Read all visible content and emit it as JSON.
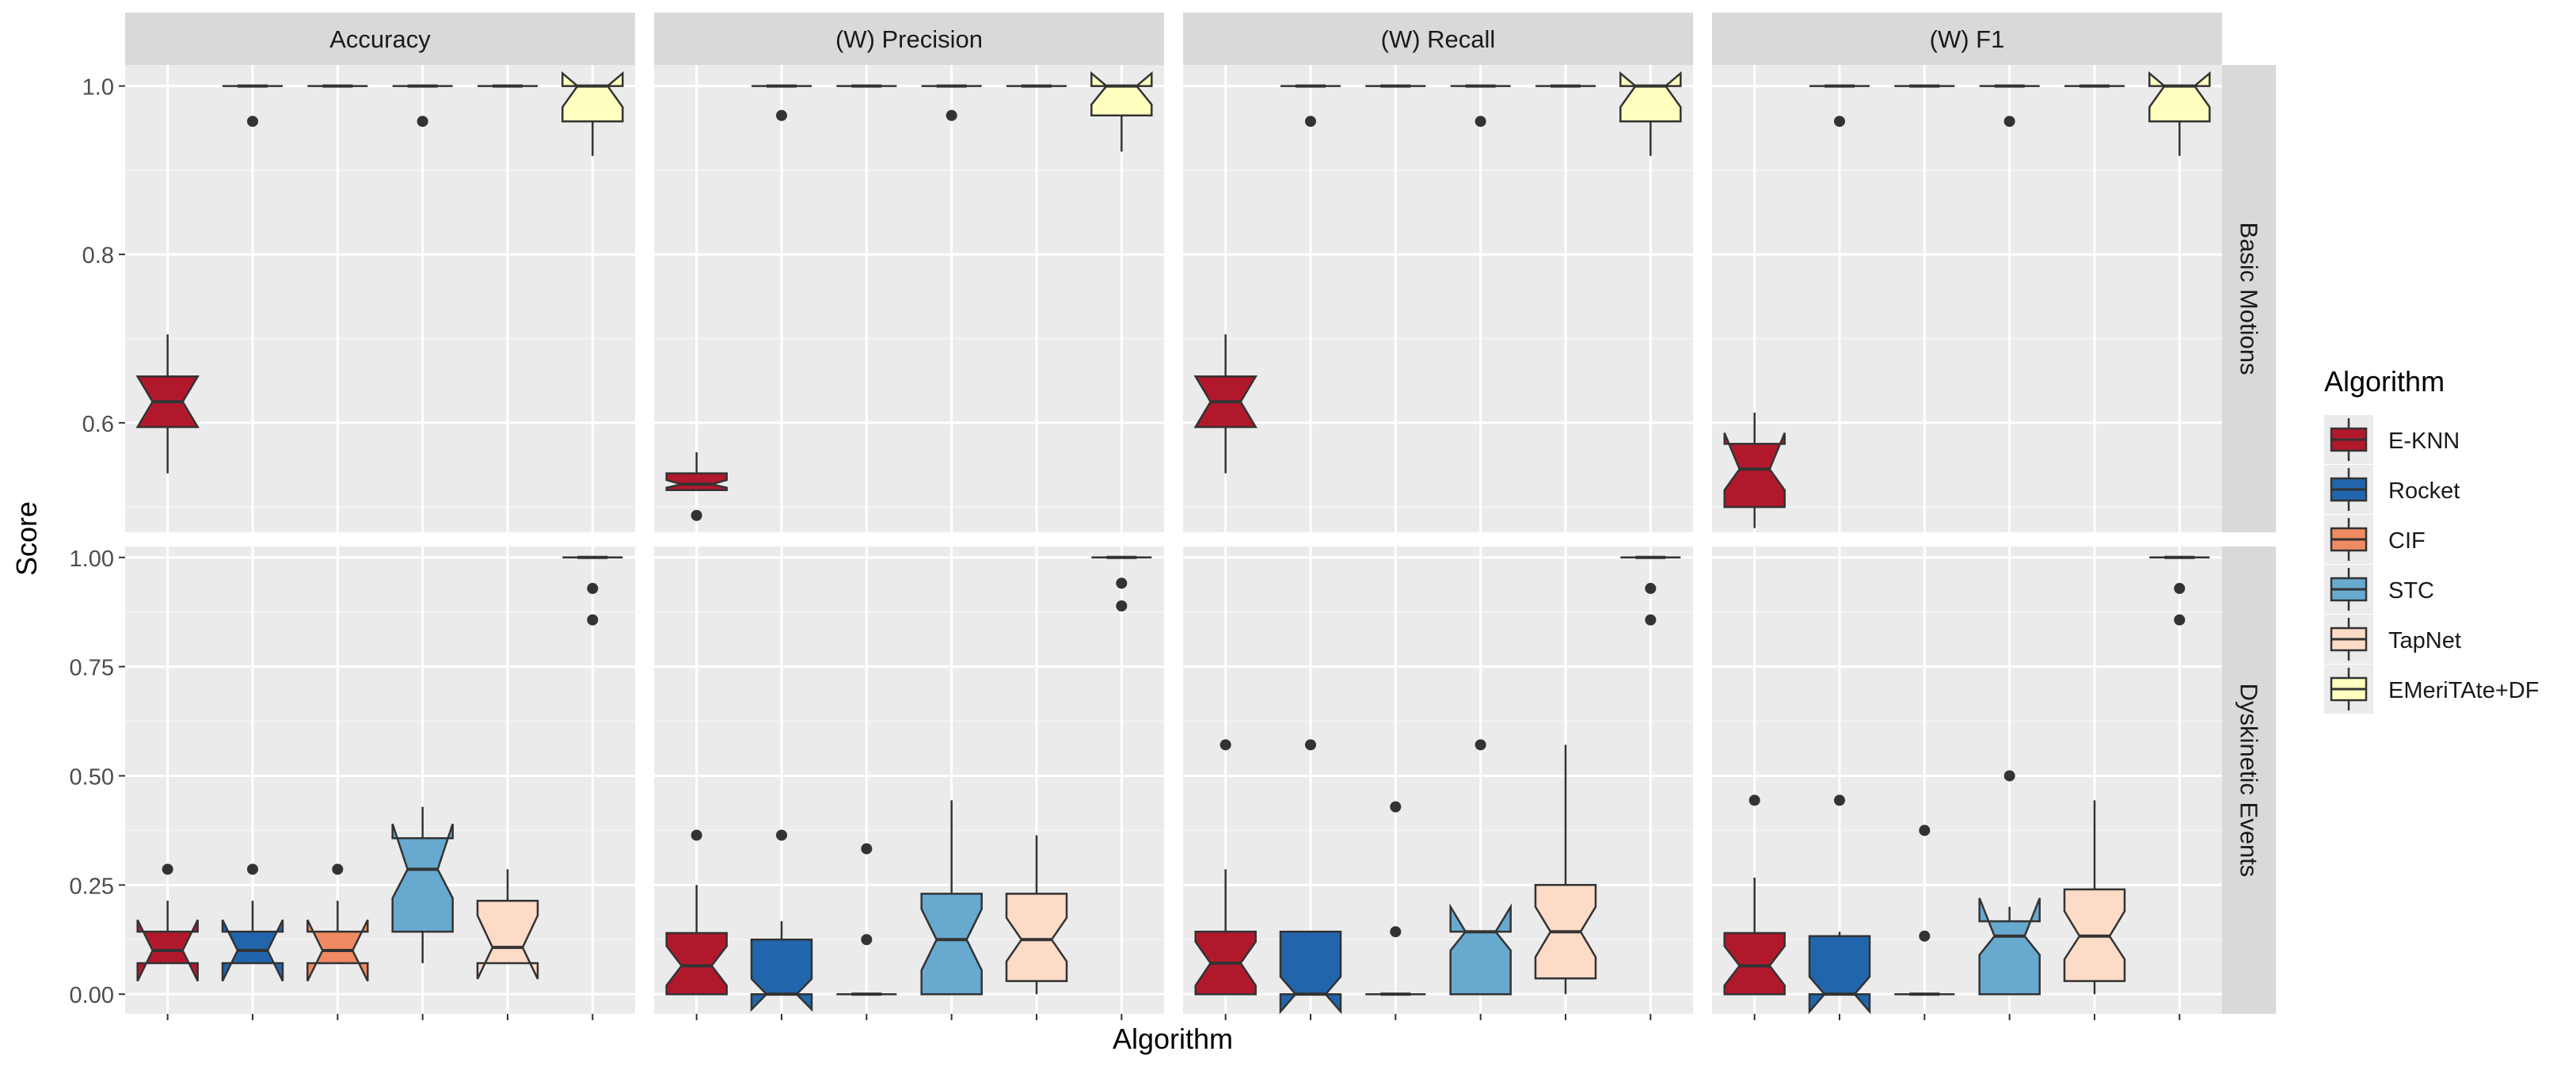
{
  "chart_data": {
    "type": "boxplot",
    "title": "",
    "xlabel": "Algorithm",
    "ylabel": "Score",
    "legend": {
      "title": "Algorithm",
      "position": "right",
      "entries": [
        {
          "name": "E-KNN",
          "color": "#b2182b"
        },
        {
          "name": "Rocket",
          "color": "#2166ac"
        },
        {
          "name": "CIF",
          "color": "#ef8a62"
        },
        {
          "name": "STC",
          "color": "#67a9cf"
        },
        {
          "name": "TapNet",
          "color": "#fddbc7"
        },
        {
          "name": "EMeriTAte+DF",
          "color": "#ffffbf"
        }
      ]
    },
    "columns": [
      "Accuracy",
      "(W) Precision",
      "(W) Recall",
      "(W) F1"
    ],
    "rows": [
      {
        "label": "Basic Motions",
        "ylim": [
          0.47,
          1.025
        ],
        "ticks": [
          0.6,
          0.8,
          1.0
        ],
        "tick_labels": [
          "0.6",
          "0.8",
          "1.0"
        ]
      },
      {
        "label": "Dyskinetic Events",
        "ylim": [
          -0.045,
          1.025
        ],
        "ticks": [
          0,
          0.25,
          0.5,
          0.75,
          1.0
        ],
        "tick_labels": [
          "0.00",
          "0.25",
          "0.50",
          "0.75",
          "1.00"
        ]
      }
    ],
    "facets": [
      {
        "row": "Basic Motions",
        "col": "Accuracy",
        "boxes": [
          {
            "algorithm": "E-KNN",
            "lw": 0.54,
            "q1": 0.595,
            "med": 0.625,
            "q3": 0.655,
            "uw": 0.705,
            "nl": 0.595,
            "nu": 0.655,
            "out": []
          },
          {
            "algorithm": "Rocket",
            "lw": 1.0,
            "q1": 1.0,
            "med": 1.0,
            "q3": 1.0,
            "uw": 1.0,
            "nl": 1.0,
            "nu": 1.0,
            "out": [
              0.958
            ]
          },
          {
            "algorithm": "CIF",
            "lw": 1.0,
            "q1": 1.0,
            "med": 1.0,
            "q3": 1.0,
            "uw": 1.0,
            "nl": 1.0,
            "nu": 1.0,
            "out": []
          },
          {
            "algorithm": "STC",
            "lw": 1.0,
            "q1": 1.0,
            "med": 1.0,
            "q3": 1.0,
            "uw": 1.0,
            "nl": 1.0,
            "nu": 1.0,
            "out": [
              0.958
            ]
          },
          {
            "algorithm": "TapNet",
            "lw": 1.0,
            "q1": 1.0,
            "med": 1.0,
            "q3": 1.0,
            "uw": 1.0,
            "nl": 1.0,
            "nu": 1.0,
            "out": []
          },
          {
            "algorithm": "EMeriTAte+DF",
            "lw": 0.917,
            "q1": 0.958,
            "med": 1.0,
            "q3": 1.0,
            "uw": 1.0,
            "nl": 0.975,
            "nu": 1.015,
            "out": []
          }
        ]
      },
      {
        "row": "Basic Motions",
        "col": "(W) Precision",
        "boxes": [
          {
            "algorithm": "E-KNN",
            "lw": 0.52,
            "q1": 0.52,
            "med": 0.527,
            "q3": 0.54,
            "uw": 0.565,
            "nl": 0.523,
            "nu": 0.532,
            "out": [
              0.49
            ]
          },
          {
            "algorithm": "Rocket",
            "lw": 1.0,
            "q1": 1.0,
            "med": 1.0,
            "q3": 1.0,
            "uw": 1.0,
            "nl": 1.0,
            "nu": 1.0,
            "out": [
              0.965
            ]
          },
          {
            "algorithm": "CIF",
            "lw": 1.0,
            "q1": 1.0,
            "med": 1.0,
            "q3": 1.0,
            "uw": 1.0,
            "nl": 1.0,
            "nu": 1.0,
            "out": []
          },
          {
            "algorithm": "STC",
            "lw": 1.0,
            "q1": 1.0,
            "med": 1.0,
            "q3": 1.0,
            "uw": 1.0,
            "nl": 1.0,
            "nu": 1.0,
            "out": [
              0.965
            ]
          },
          {
            "algorithm": "TapNet",
            "lw": 1.0,
            "q1": 1.0,
            "med": 1.0,
            "q3": 1.0,
            "uw": 1.0,
            "nl": 1.0,
            "nu": 1.0,
            "out": []
          },
          {
            "algorithm": "EMeriTAte+DF",
            "lw": 0.922,
            "q1": 0.965,
            "med": 1.0,
            "q3": 1.0,
            "uw": 1.0,
            "nl": 0.978,
            "nu": 1.015,
            "out": []
          }
        ]
      },
      {
        "row": "Basic Motions",
        "col": "(W) Recall",
        "boxes": [
          {
            "algorithm": "E-KNN",
            "lw": 0.54,
            "q1": 0.595,
            "med": 0.625,
            "q3": 0.655,
            "uw": 0.705,
            "nl": 0.595,
            "nu": 0.655,
            "out": []
          },
          {
            "algorithm": "Rocket",
            "lw": 1.0,
            "q1": 1.0,
            "med": 1.0,
            "q3": 1.0,
            "uw": 1.0,
            "nl": 1.0,
            "nu": 1.0,
            "out": [
              0.958
            ]
          },
          {
            "algorithm": "CIF",
            "lw": 1.0,
            "q1": 1.0,
            "med": 1.0,
            "q3": 1.0,
            "uw": 1.0,
            "nl": 1.0,
            "nu": 1.0,
            "out": []
          },
          {
            "algorithm": "STC",
            "lw": 1.0,
            "q1": 1.0,
            "med": 1.0,
            "q3": 1.0,
            "uw": 1.0,
            "nl": 1.0,
            "nu": 1.0,
            "out": [
              0.958
            ]
          },
          {
            "algorithm": "TapNet",
            "lw": 1.0,
            "q1": 1.0,
            "med": 1.0,
            "q3": 1.0,
            "uw": 1.0,
            "nl": 1.0,
            "nu": 1.0,
            "out": []
          },
          {
            "algorithm": "EMeriTAte+DF",
            "lw": 0.917,
            "q1": 0.958,
            "med": 1.0,
            "q3": 1.0,
            "uw": 1.0,
            "nl": 0.975,
            "nu": 1.015,
            "out": []
          }
        ]
      },
      {
        "row": "Basic Motions",
        "col": "(W) F1",
        "boxes": [
          {
            "algorithm": "E-KNN",
            "lw": 0.475,
            "q1": 0.5,
            "med": 0.545,
            "q3": 0.575,
            "uw": 0.612,
            "nl": 0.52,
            "nu": 0.588,
            "out": []
          },
          {
            "algorithm": "Rocket",
            "lw": 1.0,
            "q1": 1.0,
            "med": 1.0,
            "q3": 1.0,
            "uw": 1.0,
            "nl": 1.0,
            "nu": 1.0,
            "out": [
              0.958
            ]
          },
          {
            "algorithm": "CIF",
            "lw": 1.0,
            "q1": 1.0,
            "med": 1.0,
            "q3": 1.0,
            "uw": 1.0,
            "nl": 1.0,
            "nu": 1.0,
            "out": []
          },
          {
            "algorithm": "STC",
            "lw": 1.0,
            "q1": 1.0,
            "med": 1.0,
            "q3": 1.0,
            "uw": 1.0,
            "nl": 1.0,
            "nu": 1.0,
            "out": [
              0.958
            ]
          },
          {
            "algorithm": "TapNet",
            "lw": 1.0,
            "q1": 1.0,
            "med": 1.0,
            "q3": 1.0,
            "uw": 1.0,
            "nl": 1.0,
            "nu": 1.0,
            "out": []
          },
          {
            "algorithm": "EMeriTAte+DF",
            "lw": 0.917,
            "q1": 0.958,
            "med": 1.0,
            "q3": 1.0,
            "uw": 1.0,
            "nl": 0.975,
            "nu": 1.015,
            "out": []
          }
        ]
      },
      {
        "row": "Dyskinetic Events",
        "col": "Accuracy",
        "boxes": [
          {
            "algorithm": "E-KNN",
            "lw": 0.071,
            "q1": 0.071,
            "med": 0.1,
            "q3": 0.143,
            "uw": 0.214,
            "nl": 0.03,
            "nu": 0.17,
            "out": [
              0.286
            ]
          },
          {
            "algorithm": "Rocket",
            "lw": 0.071,
            "q1": 0.071,
            "med": 0.1,
            "q3": 0.143,
            "uw": 0.214,
            "nl": 0.03,
            "nu": 0.17,
            "out": [
              0.286
            ]
          },
          {
            "algorithm": "CIF",
            "lw": 0.071,
            "q1": 0.071,
            "med": 0.1,
            "q3": 0.143,
            "uw": 0.214,
            "nl": 0.03,
            "nu": 0.17,
            "out": [
              0.286
            ]
          },
          {
            "algorithm": "STC",
            "lw": 0.071,
            "q1": 0.143,
            "med": 0.286,
            "q3": 0.357,
            "uw": 0.429,
            "nl": 0.22,
            "nu": 0.39,
            "out": []
          },
          {
            "algorithm": "TapNet",
            "lw": 0.071,
            "q1": 0.071,
            "med": 0.107,
            "q3": 0.214,
            "uw": 0.286,
            "nl": 0.035,
            "nu": 0.18,
            "out": []
          },
          {
            "algorithm": "EMeriTAte+DF",
            "lw": 1.0,
            "q1": 1.0,
            "med": 1.0,
            "q3": 1.0,
            "uw": 1.0,
            "nl": 1.0,
            "nu": 1.0,
            "out": [
              0.929,
              0.857
            ]
          }
        ]
      },
      {
        "row": "Dyskinetic Events",
        "col": "(W) Precision",
        "boxes": [
          {
            "algorithm": "E-KNN",
            "lw": 0.0,
            "q1": 0.0,
            "med": 0.065,
            "q3": 0.14,
            "uw": 0.25,
            "nl": 0.02,
            "nu": 0.11,
            "out": [
              0.364
            ]
          },
          {
            "algorithm": "Rocket",
            "lw": 0.0,
            "q1": 0.0,
            "med": 0.0,
            "q3": 0.125,
            "uw": 0.167,
            "nl": -0.035,
            "nu": 0.035,
            "out": [
              0.364
            ]
          },
          {
            "algorithm": "CIF",
            "lw": 0.0,
            "q1": 0.0,
            "med": 0.0,
            "q3": 0.0,
            "uw": 0.0,
            "nl": 0.0,
            "nu": 0.0,
            "out": [
              0.333,
              0.125
            ]
          },
          {
            "algorithm": "STC",
            "lw": 0.0,
            "q1": 0.0,
            "med": 0.125,
            "q3": 0.23,
            "uw": 0.444,
            "nl": 0.055,
            "nu": 0.195,
            "out": []
          },
          {
            "algorithm": "TapNet",
            "lw": 0.0,
            "q1": 0.03,
            "med": 0.125,
            "q3": 0.23,
            "uw": 0.364,
            "nl": 0.075,
            "nu": 0.175,
            "out": []
          },
          {
            "algorithm": "EMeriTAte+DF",
            "lw": 1.0,
            "q1": 1.0,
            "med": 1.0,
            "q3": 1.0,
            "uw": 1.0,
            "nl": 1.0,
            "nu": 1.0,
            "out": [
              0.941,
              0.889
            ]
          }
        ]
      },
      {
        "row": "Dyskinetic Events",
        "col": "(W) Recall",
        "boxes": [
          {
            "algorithm": "E-KNN",
            "lw": 0.0,
            "q1": 0.0,
            "med": 0.071,
            "q3": 0.143,
            "uw": 0.286,
            "nl": 0.02,
            "nu": 0.12,
            "out": [
              0.571
            ]
          },
          {
            "algorithm": "Rocket",
            "lw": 0.0,
            "q1": 0.0,
            "med": 0.0,
            "q3": 0.143,
            "uw": 0.143,
            "nl": -0.04,
            "nu": 0.04,
            "out": [
              0.571
            ]
          },
          {
            "algorithm": "CIF",
            "lw": 0.0,
            "q1": 0.0,
            "med": 0.0,
            "q3": 0.0,
            "uw": 0.0,
            "nl": 0.0,
            "nu": 0.0,
            "out": [
              0.429,
              0.143
            ]
          },
          {
            "algorithm": "STC",
            "lw": 0.0,
            "q1": 0.0,
            "med": 0.143,
            "q3": 0.143,
            "uw": 0.143,
            "nl": 0.1,
            "nu": 0.2,
            "out": [
              0.571
            ]
          },
          {
            "algorithm": "TapNet",
            "lw": 0.0,
            "q1": 0.036,
            "med": 0.143,
            "q3": 0.25,
            "uw": 0.571,
            "nl": 0.085,
            "nu": 0.2,
            "out": []
          },
          {
            "algorithm": "EMeriTAte+DF",
            "lw": 1.0,
            "q1": 1.0,
            "med": 1.0,
            "q3": 1.0,
            "uw": 1.0,
            "nl": 1.0,
            "nu": 1.0,
            "out": [
              0.929,
              0.857
            ]
          }
        ]
      },
      {
        "row": "Dyskinetic Events",
        "col": "(W) F1",
        "boxes": [
          {
            "algorithm": "E-KNN",
            "lw": 0.0,
            "q1": 0.0,
            "med": 0.065,
            "q3": 0.14,
            "uw": 0.267,
            "nl": 0.02,
            "nu": 0.11,
            "out": [
              0.444
            ]
          },
          {
            "algorithm": "Rocket",
            "lw": 0.0,
            "q1": 0.0,
            "med": 0.0,
            "q3": 0.133,
            "uw": 0.143,
            "nl": -0.04,
            "nu": 0.04,
            "out": [
              0.444
            ]
          },
          {
            "algorithm": "CIF",
            "lw": 0.0,
            "q1": 0.0,
            "med": 0.0,
            "q3": 0.0,
            "uw": 0.0,
            "nl": 0.0,
            "nu": 0.0,
            "out": [
              0.375,
              0.133
            ]
          },
          {
            "algorithm": "STC",
            "lw": 0.0,
            "q1": 0.0,
            "med": 0.133,
            "q3": 0.167,
            "uw": 0.2,
            "nl": 0.09,
            "nu": 0.22,
            "out": [
              0.5
            ]
          },
          {
            "algorithm": "TapNet",
            "lw": 0.0,
            "q1": 0.03,
            "med": 0.133,
            "q3": 0.24,
            "uw": 0.444,
            "nl": 0.08,
            "nu": 0.19,
            "out": []
          },
          {
            "algorithm": "EMeriTAte+DF",
            "lw": 1.0,
            "q1": 1.0,
            "med": 1.0,
            "q3": 1.0,
            "uw": 1.0,
            "nl": 1.0,
            "nu": 1.0,
            "out": [
              0.929,
              0.857
            ]
          }
        ]
      }
    ]
  }
}
